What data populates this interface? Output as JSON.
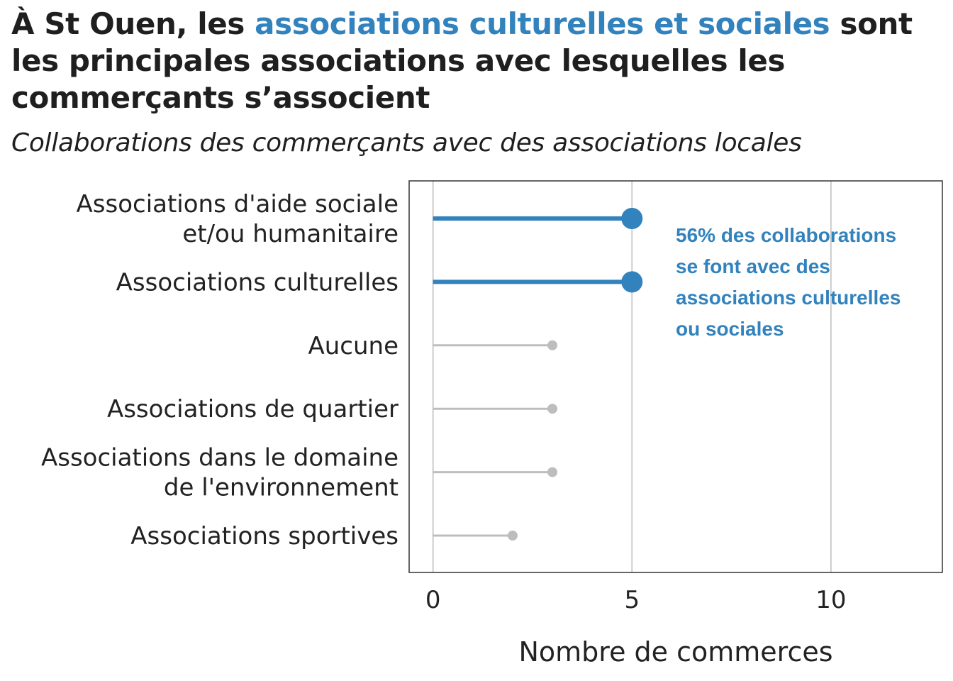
{
  "title": {
    "before": "À St Ouen, les ",
    "highlight": "associations culturelles et sociales",
    "after": " sont les principales associations avec lesquelles les commerçants s’associent"
  },
  "subtitle": "Collaborations des commerçants avec des associations locales",
  "colors": {
    "highlight": "#3182bd",
    "muted": "#bdbdbd",
    "grid": "#cccccc",
    "frame": "#333333",
    "text": "#222222"
  },
  "chart_data": {
    "type": "lollipop",
    "orientation": "horizontal",
    "categories": [
      {
        "label_lines": [
          "Associations d'aide sociale",
          "et/ou humanitaire"
        ],
        "value": 5,
        "highlight": true
      },
      {
        "label_lines": [
          "Associations culturelles"
        ],
        "value": 5,
        "highlight": true
      },
      {
        "label_lines": [
          "Aucune"
        ],
        "value": 3,
        "highlight": false
      },
      {
        "label_lines": [
          "Associations de quartier"
        ],
        "value": 3,
        "highlight": false
      },
      {
        "label_lines": [
          "Associations dans le domaine",
          "de l'environnement"
        ],
        "value": 3,
        "highlight": false
      },
      {
        "label_lines": [
          "Associations sportives"
        ],
        "value": 2,
        "highlight": false
      }
    ],
    "xlabel": "Nombre de commerces",
    "ylabel": "",
    "xlim": [
      -0.6,
      12.8
    ],
    "xticks": [
      0,
      5,
      10
    ],
    "grid": true,
    "annotation": {
      "lines": [
        "56% des collaborations",
        "se font avec des",
        "associations culturelles",
        "ou sociales"
      ]
    }
  }
}
